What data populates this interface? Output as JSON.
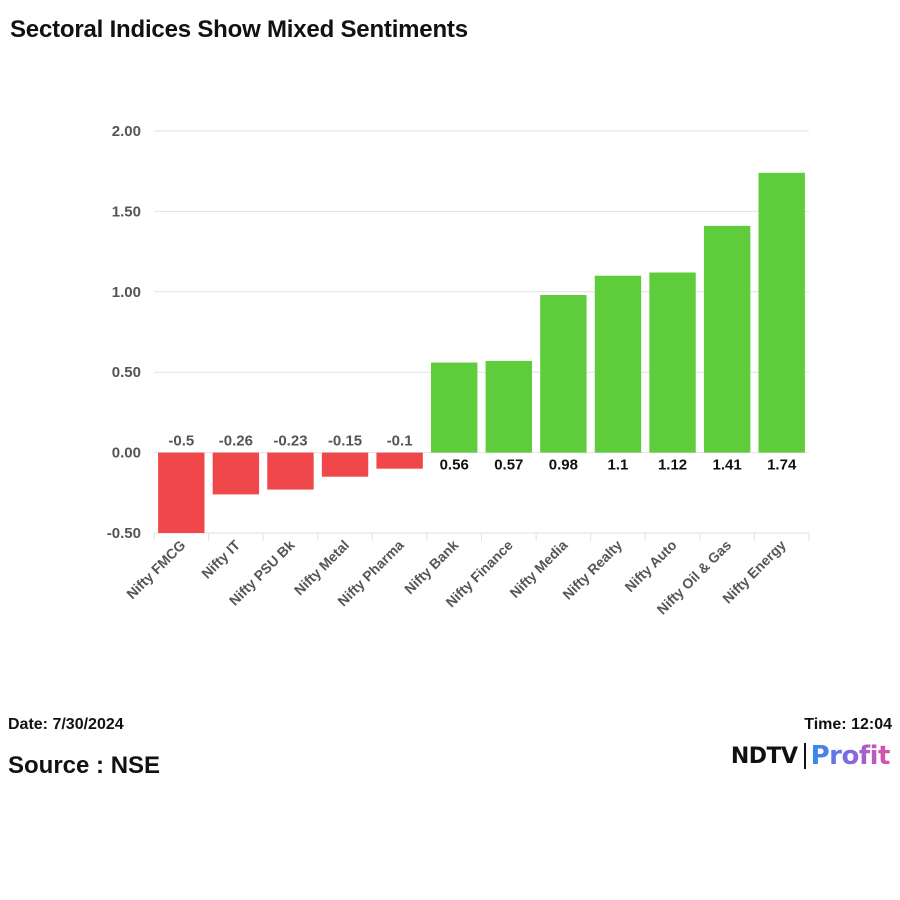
{
  "title": "Sectoral Indices Show Mixed Sentiments",
  "footer": {
    "date": "Date: 7/30/2024",
    "source": "Source : NSE",
    "time": "Time: 12:04"
  },
  "logo": {
    "ndtv": "NDTV",
    "profit": "Profit"
  },
  "colors": {
    "negative": "#f0474a",
    "positive": "#5fcc3b",
    "grid": "#e2e2e2",
    "axis_text": "#555555"
  },
  "chart_data": {
    "type": "bar",
    "categories": [
      "Nifty FMCG",
      "Nifty IT",
      "Nifty PSU Bk",
      "Nifty Metal",
      "Nifty Pharma",
      "Nifty Bank",
      "Nifty Finance",
      "Nifty Media",
      "Nifty Realty",
      "Nifty Auto",
      "Nifty Oil & Gas",
      "Nifty Energy"
    ],
    "values": [
      -0.5,
      -0.26,
      -0.23,
      -0.15,
      -0.1,
      0.56,
      0.57,
      0.98,
      1.1,
      1.12,
      1.41,
      1.74
    ],
    "data_labels": [
      "-0.5",
      "-0.26",
      "-0.23",
      "-0.15",
      "-0.1",
      "0.56",
      "0.57",
      "0.98",
      "1.1",
      "1.12",
      "1.41",
      "1.74"
    ],
    "yticks": [
      -0.5,
      0,
      0.5,
      1,
      1.5,
      2
    ],
    "ytick_labels": [
      "-0.50",
      "0.00",
      "0.50",
      "1.00",
      "1.50",
      "2.00"
    ],
    "ylim": [
      -0.5,
      2.0
    ],
    "xlabel": "",
    "ylabel": "",
    "grid": true
  }
}
